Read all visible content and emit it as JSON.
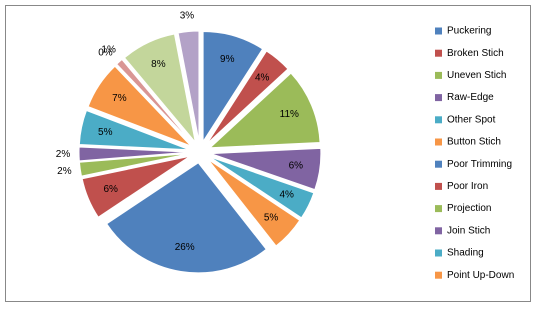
{
  "chart_data": {
    "type": "pie",
    "categories": [
      "Puckering",
      "Broken Stich",
      "Uneven Stich",
      "Raw-Edge",
      "Other Spot",
      "Button Stich",
      "Poor Trimming",
      "Poor Iron",
      "Projection",
      "Join Stich",
      "Shading",
      "Point Up-Down",
      null,
      null,
      null,
      null
    ],
    "values": [
      9,
      4,
      11,
      6,
      4,
      5,
      26,
      6,
      2,
      2,
      5,
      7,
      0,
      1,
      8,
      3
    ],
    "value_labels": [
      "9%",
      "4%",
      "11%",
      "6%",
      "4%",
      "5%",
      "26%",
      "6%",
      "2%",
      "2%",
      "5%",
      "7%",
      "0%",
      "1%",
      "8%",
      "3%"
    ],
    "colors": [
      "#4f81bd",
      "#c0504d",
      "#9bbb59",
      "#8064a2",
      "#4bacc6",
      "#f79646",
      "#4f81bd",
      "#c0504d",
      "#9bbb59",
      "#8064a2",
      "#4bacc6",
      "#f79646",
      "#95b3d7",
      "#d99694",
      "#c3d69b",
      "#b3a2c7"
    ],
    "legend": "right"
  }
}
